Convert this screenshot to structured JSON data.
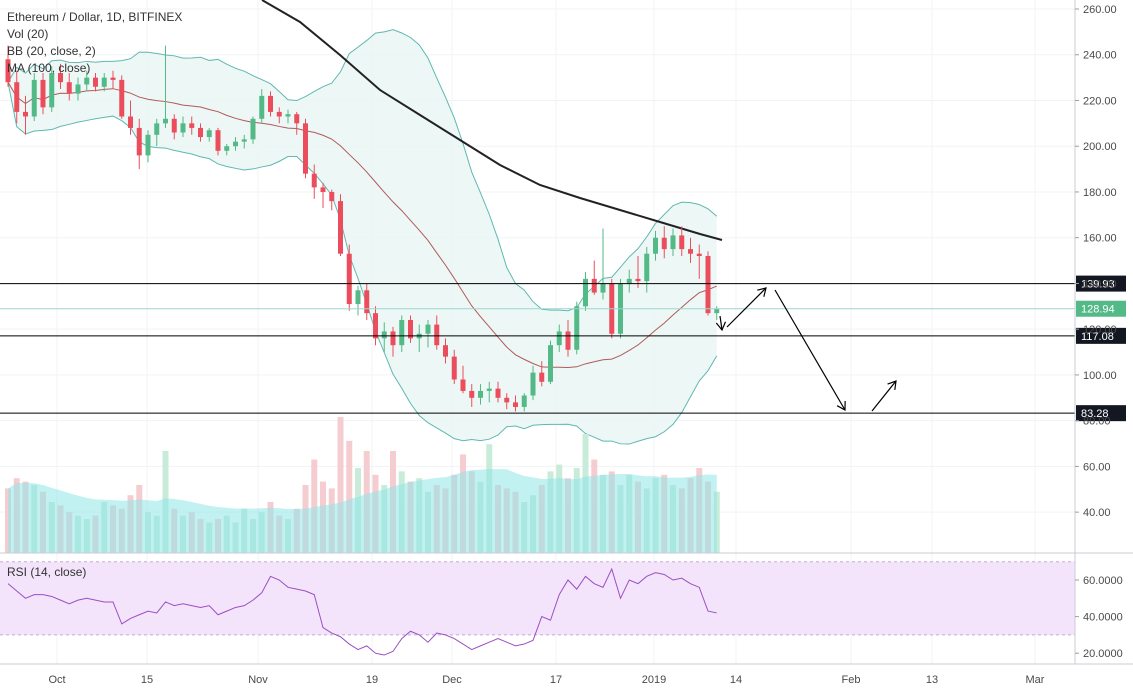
{
  "chart_data": {
    "type": "candlestick",
    "symbol_title": "Ethereum / Dollar, 1D, BITFINEX",
    "indicators": [
      "Vol (20)",
      "BB (20, close, 2)",
      "MA (100, close)"
    ],
    "rsi_label": "RSI (14, close)",
    "price_axis": {
      "ticks": [
        "260.00",
        "240.00",
        "220.00",
        "200.00",
        "180.00",
        "160.00",
        "140.00",
        "120.00",
        "100.00",
        "80.00",
        "60.00",
        "40.00"
      ],
      "ylim": [
        20,
        265
      ]
    },
    "rsi_axis": {
      "ticks": [
        "60.0000",
        "40.0000",
        "20.0000"
      ],
      "ylim": [
        15,
        72
      ]
    },
    "x_axis": {
      "ticks": [
        "Oct",
        "15",
        "Nov",
        "19",
        "Dec",
        "17",
        "2019",
        "14",
        "Feb",
        "13",
        "Mar"
      ]
    },
    "levels": [
      {
        "price": 139.93,
        "label": "139.93"
      },
      {
        "price": 117.08,
        "label": "117.08"
      },
      {
        "price": 83.28,
        "label": "83.28"
      }
    ],
    "last_price": {
      "price": 128.94,
      "label": "128.94"
    },
    "colors": {
      "up": "#53b987",
      "down": "#eb4d5c",
      "ma100": "#222222",
      "bb": "#5fb8b0",
      "bb_fill": "#e8f6f4",
      "bb_basis": "#b05a5a",
      "rsi": "#9b4fc2",
      "rsi_band": "#f3e4fb",
      "volume": "#8fe6e8",
      "tag_bg": "#131722",
      "level_line": "#000000"
    },
    "candles": [
      {
        "o": 238,
        "h": 244,
        "l": 226,
        "c": 228
      },
      {
        "o": 228,
        "h": 233,
        "l": 210,
        "c": 215
      },
      {
        "o": 215,
        "h": 222,
        "l": 205,
        "c": 213
      },
      {
        "o": 213,
        "h": 232,
        "l": 211,
        "c": 229
      },
      {
        "o": 229,
        "h": 232,
        "l": 214,
        "c": 217
      },
      {
        "o": 217,
        "h": 235,
        "l": 215,
        "c": 232
      },
      {
        "o": 232,
        "h": 236,
        "l": 225,
        "c": 228
      },
      {
        "o": 228,
        "h": 232,
        "l": 220,
        "c": 223
      },
      {
        "o": 223,
        "h": 230,
        "l": 220,
        "c": 227
      },
      {
        "o": 227,
        "h": 233,
        "l": 224,
        "c": 230
      },
      {
        "o": 230,
        "h": 232,
        "l": 224,
        "c": 226
      },
      {
        "o": 226,
        "h": 232,
        "l": 224,
        "c": 230
      },
      {
        "o": 230,
        "h": 233,
        "l": 225,
        "c": 229
      },
      {
        "o": 229,
        "h": 231,
        "l": 212,
        "c": 213
      },
      {
        "o": 213,
        "h": 220,
        "l": 205,
        "c": 208
      },
      {
        "o": 208,
        "h": 212,
        "l": 190,
        "c": 196
      },
      {
        "o": 196,
        "h": 207,
        "l": 193,
        "c": 205
      },
      {
        "o": 205,
        "h": 212,
        "l": 200,
        "c": 210
      },
      {
        "o": 210,
        "h": 244,
        "l": 208,
        "c": 212
      },
      {
        "o": 212,
        "h": 214,
        "l": 203,
        "c": 206
      },
      {
        "o": 206,
        "h": 213,
        "l": 204,
        "c": 210
      },
      {
        "o": 210,
        "h": 213,
        "l": 205,
        "c": 208
      },
      {
        "o": 208,
        "h": 210,
        "l": 202,
        "c": 204
      },
      {
        "o": 204,
        "h": 208,
        "l": 202,
        "c": 207
      },
      {
        "o": 207,
        "h": 208,
        "l": 196,
        "c": 198
      },
      {
        "o": 198,
        "h": 201,
        "l": 196,
        "c": 200
      },
      {
        "o": 200,
        "h": 204,
        "l": 198,
        "c": 202
      },
      {
        "o": 202,
        "h": 205,
        "l": 199,
        "c": 203
      },
      {
        "o": 203,
        "h": 213,
        "l": 201,
        "c": 212
      },
      {
        "o": 212,
        "h": 225,
        "l": 210,
        "c": 222
      },
      {
        "o": 222,
        "h": 224,
        "l": 213,
        "c": 215
      },
      {
        "o": 215,
        "h": 217,
        "l": 210,
        "c": 213
      },
      {
        "o": 213,
        "h": 216,
        "l": 210,
        "c": 214
      },
      {
        "o": 214,
        "h": 215,
        "l": 205,
        "c": 210
      },
      {
        "o": 210,
        "h": 212,
        "l": 186,
        "c": 188
      },
      {
        "o": 188,
        "h": 192,
        "l": 177,
        "c": 182
      },
      {
        "o": 182,
        "h": 184,
        "l": 173,
        "c": 180
      },
      {
        "o": 180,
        "h": 181,
        "l": 172,
        "c": 176
      },
      {
        "o": 176,
        "h": 179,
        "l": 152,
        "c": 153
      },
      {
        "o": 153,
        "h": 157,
        "l": 128,
        "c": 131
      },
      {
        "o": 131,
        "h": 139,
        "l": 126,
        "c": 137
      },
      {
        "o": 137,
        "h": 140,
        "l": 124,
        "c": 127
      },
      {
        "o": 127,
        "h": 130,
        "l": 113,
        "c": 116
      },
      {
        "o": 116,
        "h": 123,
        "l": 110,
        "c": 119
      },
      {
        "o": 119,
        "h": 121,
        "l": 108,
        "c": 113
      },
      {
        "o": 113,
        "h": 126,
        "l": 110,
        "c": 124
      },
      {
        "o": 124,
        "h": 126,
        "l": 114,
        "c": 116
      },
      {
        "o": 116,
        "h": 122,
        "l": 110,
        "c": 118
      },
      {
        "o": 118,
        "h": 124,
        "l": 112,
        "c": 122
      },
      {
        "o": 122,
        "h": 126,
        "l": 111,
        "c": 113
      },
      {
        "o": 113,
        "h": 116,
        "l": 105,
        "c": 108
      },
      {
        "o": 108,
        "h": 111,
        "l": 96,
        "c": 98
      },
      {
        "o": 98,
        "h": 104,
        "l": 92,
        "c": 93
      },
      {
        "o": 93,
        "h": 96,
        "l": 86,
        "c": 90
      },
      {
        "o": 90,
        "h": 96,
        "l": 87,
        "c": 93
      },
      {
        "o": 93,
        "h": 97,
        "l": 88,
        "c": 94
      },
      {
        "o": 94,
        "h": 97,
        "l": 88,
        "c": 90
      },
      {
        "o": 90,
        "h": 92,
        "l": 85,
        "c": 88
      },
      {
        "o": 88,
        "h": 91,
        "l": 84,
        "c": 86
      },
      {
        "o": 86,
        "h": 92,
        "l": 84,
        "c": 91
      },
      {
        "o": 91,
        "h": 104,
        "l": 89,
        "c": 101
      },
      {
        "o": 101,
        "h": 106,
        "l": 95,
        "c": 97
      },
      {
        "o": 97,
        "h": 115,
        "l": 96,
        "c": 113
      },
      {
        "o": 113,
        "h": 122,
        "l": 110,
        "c": 119
      },
      {
        "o": 119,
        "h": 124,
        "l": 108,
        "c": 111
      },
      {
        "o": 111,
        "h": 132,
        "l": 109,
        "c": 130
      },
      {
        "o": 130,
        "h": 145,
        "l": 128,
        "c": 142
      },
      {
        "o": 142,
        "h": 150,
        "l": 135,
        "c": 136
      },
      {
        "o": 136,
        "h": 164,
        "l": 133,
        "c": 140
      },
      {
        "o": 140,
        "h": 142,
        "l": 116,
        "c": 118
      },
      {
        "o": 118,
        "h": 142,
        "l": 116,
        "c": 140
      },
      {
        "o": 140,
        "h": 146,
        "l": 136,
        "c": 142
      },
      {
        "o": 142,
        "h": 152,
        "l": 138,
        "c": 141
      },
      {
        "o": 141,
        "h": 156,
        "l": 136,
        "c": 153
      },
      {
        "o": 153,
        "h": 163,
        "l": 150,
        "c": 160
      },
      {
        "o": 160,
        "h": 165,
        "l": 151,
        "c": 155
      },
      {
        "o": 155,
        "h": 164,
        "l": 152,
        "c": 161
      },
      {
        "o": 161,
        "h": 165,
        "l": 152,
        "c": 155
      },
      {
        "o": 155,
        "h": 160,
        "l": 149,
        "c": 153
      },
      {
        "o": 153,
        "h": 157,
        "l": 142,
        "c": 152
      },
      {
        "o": 152,
        "h": 154,
        "l": 126,
        "c": 127
      },
      {
        "o": 127,
        "h": 130,
        "l": 124,
        "c": 128.94
      }
    ],
    "volume": [
      38,
      44,
      42,
      40,
      36,
      30,
      28,
      24,
      22,
      20,
      22,
      30,
      28,
      26,
      34,
      40,
      24,
      22,
      60,
      26,
      22,
      24,
      20,
      18,
      20,
      22,
      18,
      26,
      20,
      24,
      30,
      22,
      20,
      26,
      40,
      55,
      42,
      38,
      80,
      66,
      50,
      60,
      46,
      40,
      60,
      48,
      42,
      44,
      36,
      40,
      38,
      46,
      58,
      48,
      42,
      64,
      40,
      38,
      36,
      30,
      34,
      40,
      48,
      52,
      44,
      50,
      70,
      55,
      46,
      48,
      40,
      46,
      42,
      38,
      44,
      46,
      40,
      38,
      44,
      50,
      42,
      36
    ],
    "rsi": [
      58,
      54,
      50,
      52,
      52,
      51,
      49,
      47,
      49,
      50,
      49,
      48,
      48,
      36,
      39,
      41,
      43,
      42,
      48,
      46,
      47,
      46,
      45,
      46,
      41,
      43,
      45,
      46,
      49,
      53,
      62,
      60,
      56,
      55,
      54,
      52,
      34,
      31,
      29,
      25,
      22,
      24,
      20,
      19,
      21,
      28,
      32,
      30,
      26,
      31,
      30,
      28,
      25,
      22,
      24,
      26,
      28,
      26,
      24,
      25,
      27,
      40,
      38,
      52,
      60,
      55,
      62,
      58,
      56,
      66,
      50,
      60,
      58,
      62,
      64,
      63,
      60,
      61,
      58,
      56,
      43,
      42
    ]
  },
  "annotation": {
    "arrows": "projected path"
  }
}
